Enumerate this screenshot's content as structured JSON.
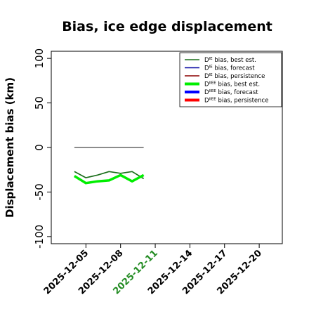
{
  "chart_data": {
    "type": "line",
    "title": "Bias, ice edge displacement",
    "ylabel": "Displacement bias (km)",
    "xlabel": "",
    "ylim": [
      -108,
      108
    ],
    "yticks": [
      -100,
      -50,
      0,
      50,
      100
    ],
    "xlim": [
      "2025-12-02",
      "2025-12-22"
    ],
    "xticks": [
      "2025-12-05",
      "2025-12-08",
      "2025-12-11",
      "2025-12-14",
      "2025-12-17",
      "2025-12-20"
    ],
    "highlight_tick": "2025-12-11",
    "highlight_color": "#228b22",
    "grid": false,
    "legend_position": "top-right",
    "legend": [
      {
        "base": "D",
        "sup": "IE",
        "rest": " bias, best est.",
        "color": "#1a6e1a",
        "width": 1.5
      },
      {
        "base": "D",
        "sup": "IE",
        "rest": " bias, forecast",
        "color": "#0000a0",
        "width": 1.5
      },
      {
        "base": "D",
        "sup": "IE",
        "rest": " bias, persistence",
        "color": "#8b0000",
        "width": 1.5
      },
      {
        "base": "D",
        "sup": "IIEE",
        "rest": " bias, best est.",
        "color": "#00ee00",
        "width": 4
      },
      {
        "base": "D",
        "sup": "IIEE",
        "rest": " bias, forecast",
        "color": "#0000ff",
        "width": 4
      },
      {
        "base": "D",
        "sup": "IIEE",
        "rest": " bias, persistence",
        "color": "#ff0000",
        "width": 4
      }
    ],
    "series": [
      {
        "color": "#1a6e1a",
        "width": 1.7,
        "x": [
          "2025-12-04",
          "2025-12-05",
          "2025-12-06",
          "2025-12-07",
          "2025-12-08",
          "2025-12-09",
          "2025-12-10"
        ],
        "y": [
          -27,
          -34,
          -31,
          -27,
          -29,
          -27,
          -35
        ]
      },
      {
        "color": "#00ee00",
        "width": 3.5,
        "x": [
          "2025-12-04",
          "2025-12-05",
          "2025-12-06",
          "2025-12-07",
          "2025-12-08",
          "2025-12-09",
          "2025-12-10"
        ],
        "y": [
          -32,
          -40,
          -38,
          -37,
          -31,
          -38,
          -31
        ]
      },
      {
        "color": "#666666",
        "width": 1.5,
        "x": [
          "2025-12-04",
          "2025-12-10"
        ],
        "y": [
          0,
          0
        ]
      }
    ]
  }
}
